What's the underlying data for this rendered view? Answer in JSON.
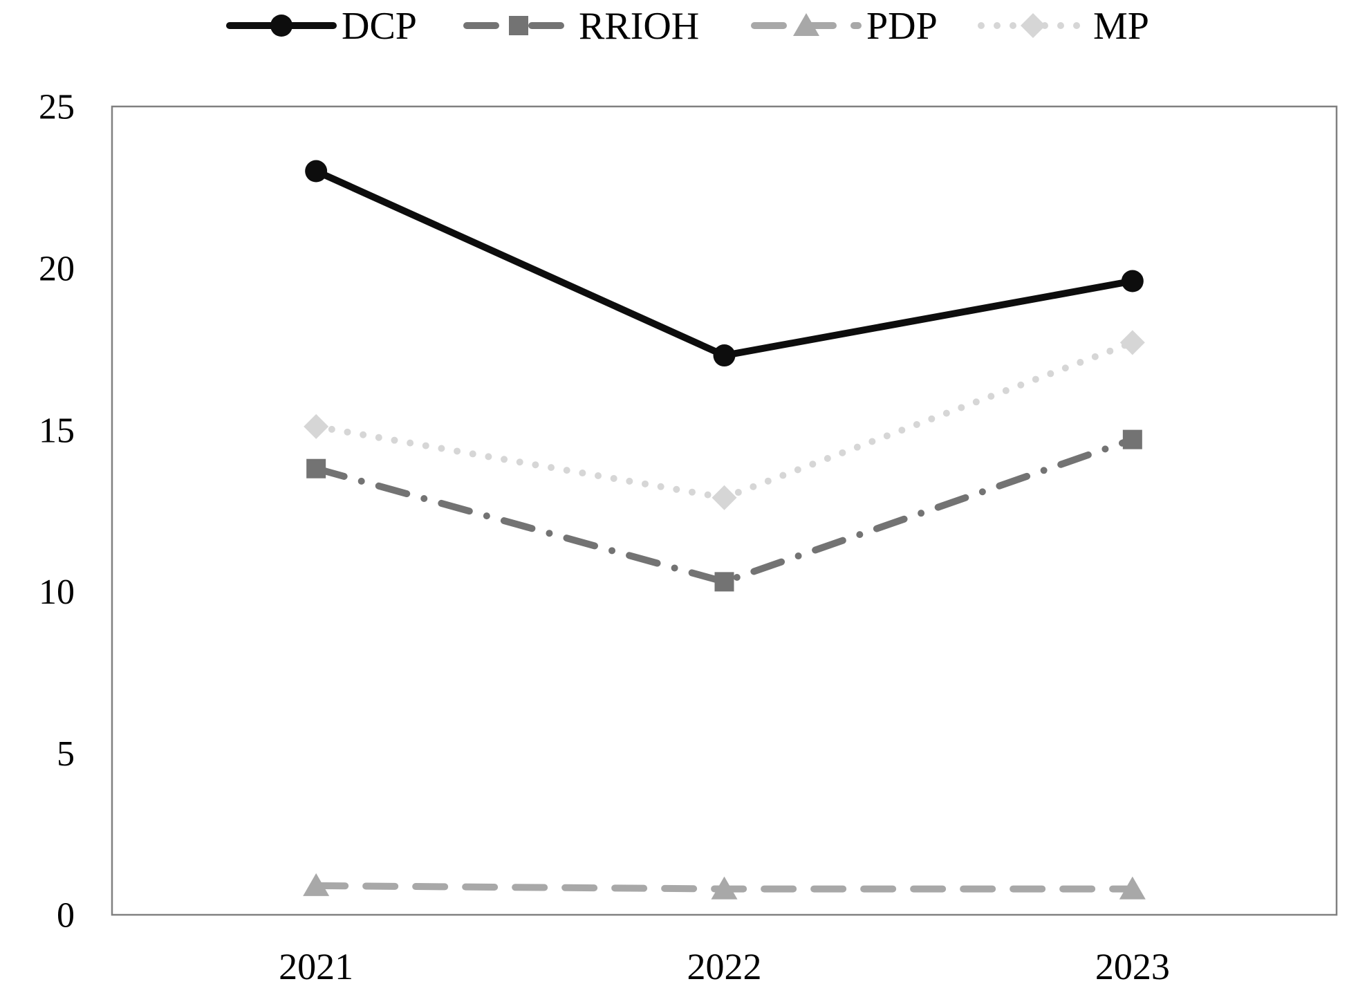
{
  "chart_data": {
    "type": "line",
    "title": "",
    "xlabel": "",
    "ylabel": "",
    "categories": [
      "2021",
      "2022",
      "2023"
    ],
    "series": [
      {
        "name": "DCP",
        "values": [
          23.0,
          17.3,
          19.6
        ],
        "color": "#0d0d0d",
        "line_style": "solid",
        "marker": "circle"
      },
      {
        "name": "RRIOH",
        "values": [
          13.8,
          10.3,
          14.7
        ],
        "color": "#737373",
        "line_style": "dash-dot",
        "marker": "square"
      },
      {
        "name": "PDP",
        "values": [
          0.9,
          0.8,
          0.8
        ],
        "color": "#a8a8a8",
        "line_style": "dashed",
        "marker": "triangle"
      },
      {
        "name": "MP",
        "values": [
          15.1,
          12.9,
          17.7
        ],
        "color": "#d6d6d6",
        "line_style": "dotted",
        "marker": "diamond"
      }
    ],
    "ylim": [
      0,
      25
    ],
    "yticks": [
      "0",
      "5",
      "10",
      "15",
      "20",
      "25"
    ],
    "grid": false,
    "legend_position": "top",
    "legend_labels": [
      "DCP",
      "RRIOH",
      "PDP",
      "MP"
    ],
    "axis_border_color": "#808080",
    "text_color": "#000000",
    "background_color": "#ffffff"
  }
}
